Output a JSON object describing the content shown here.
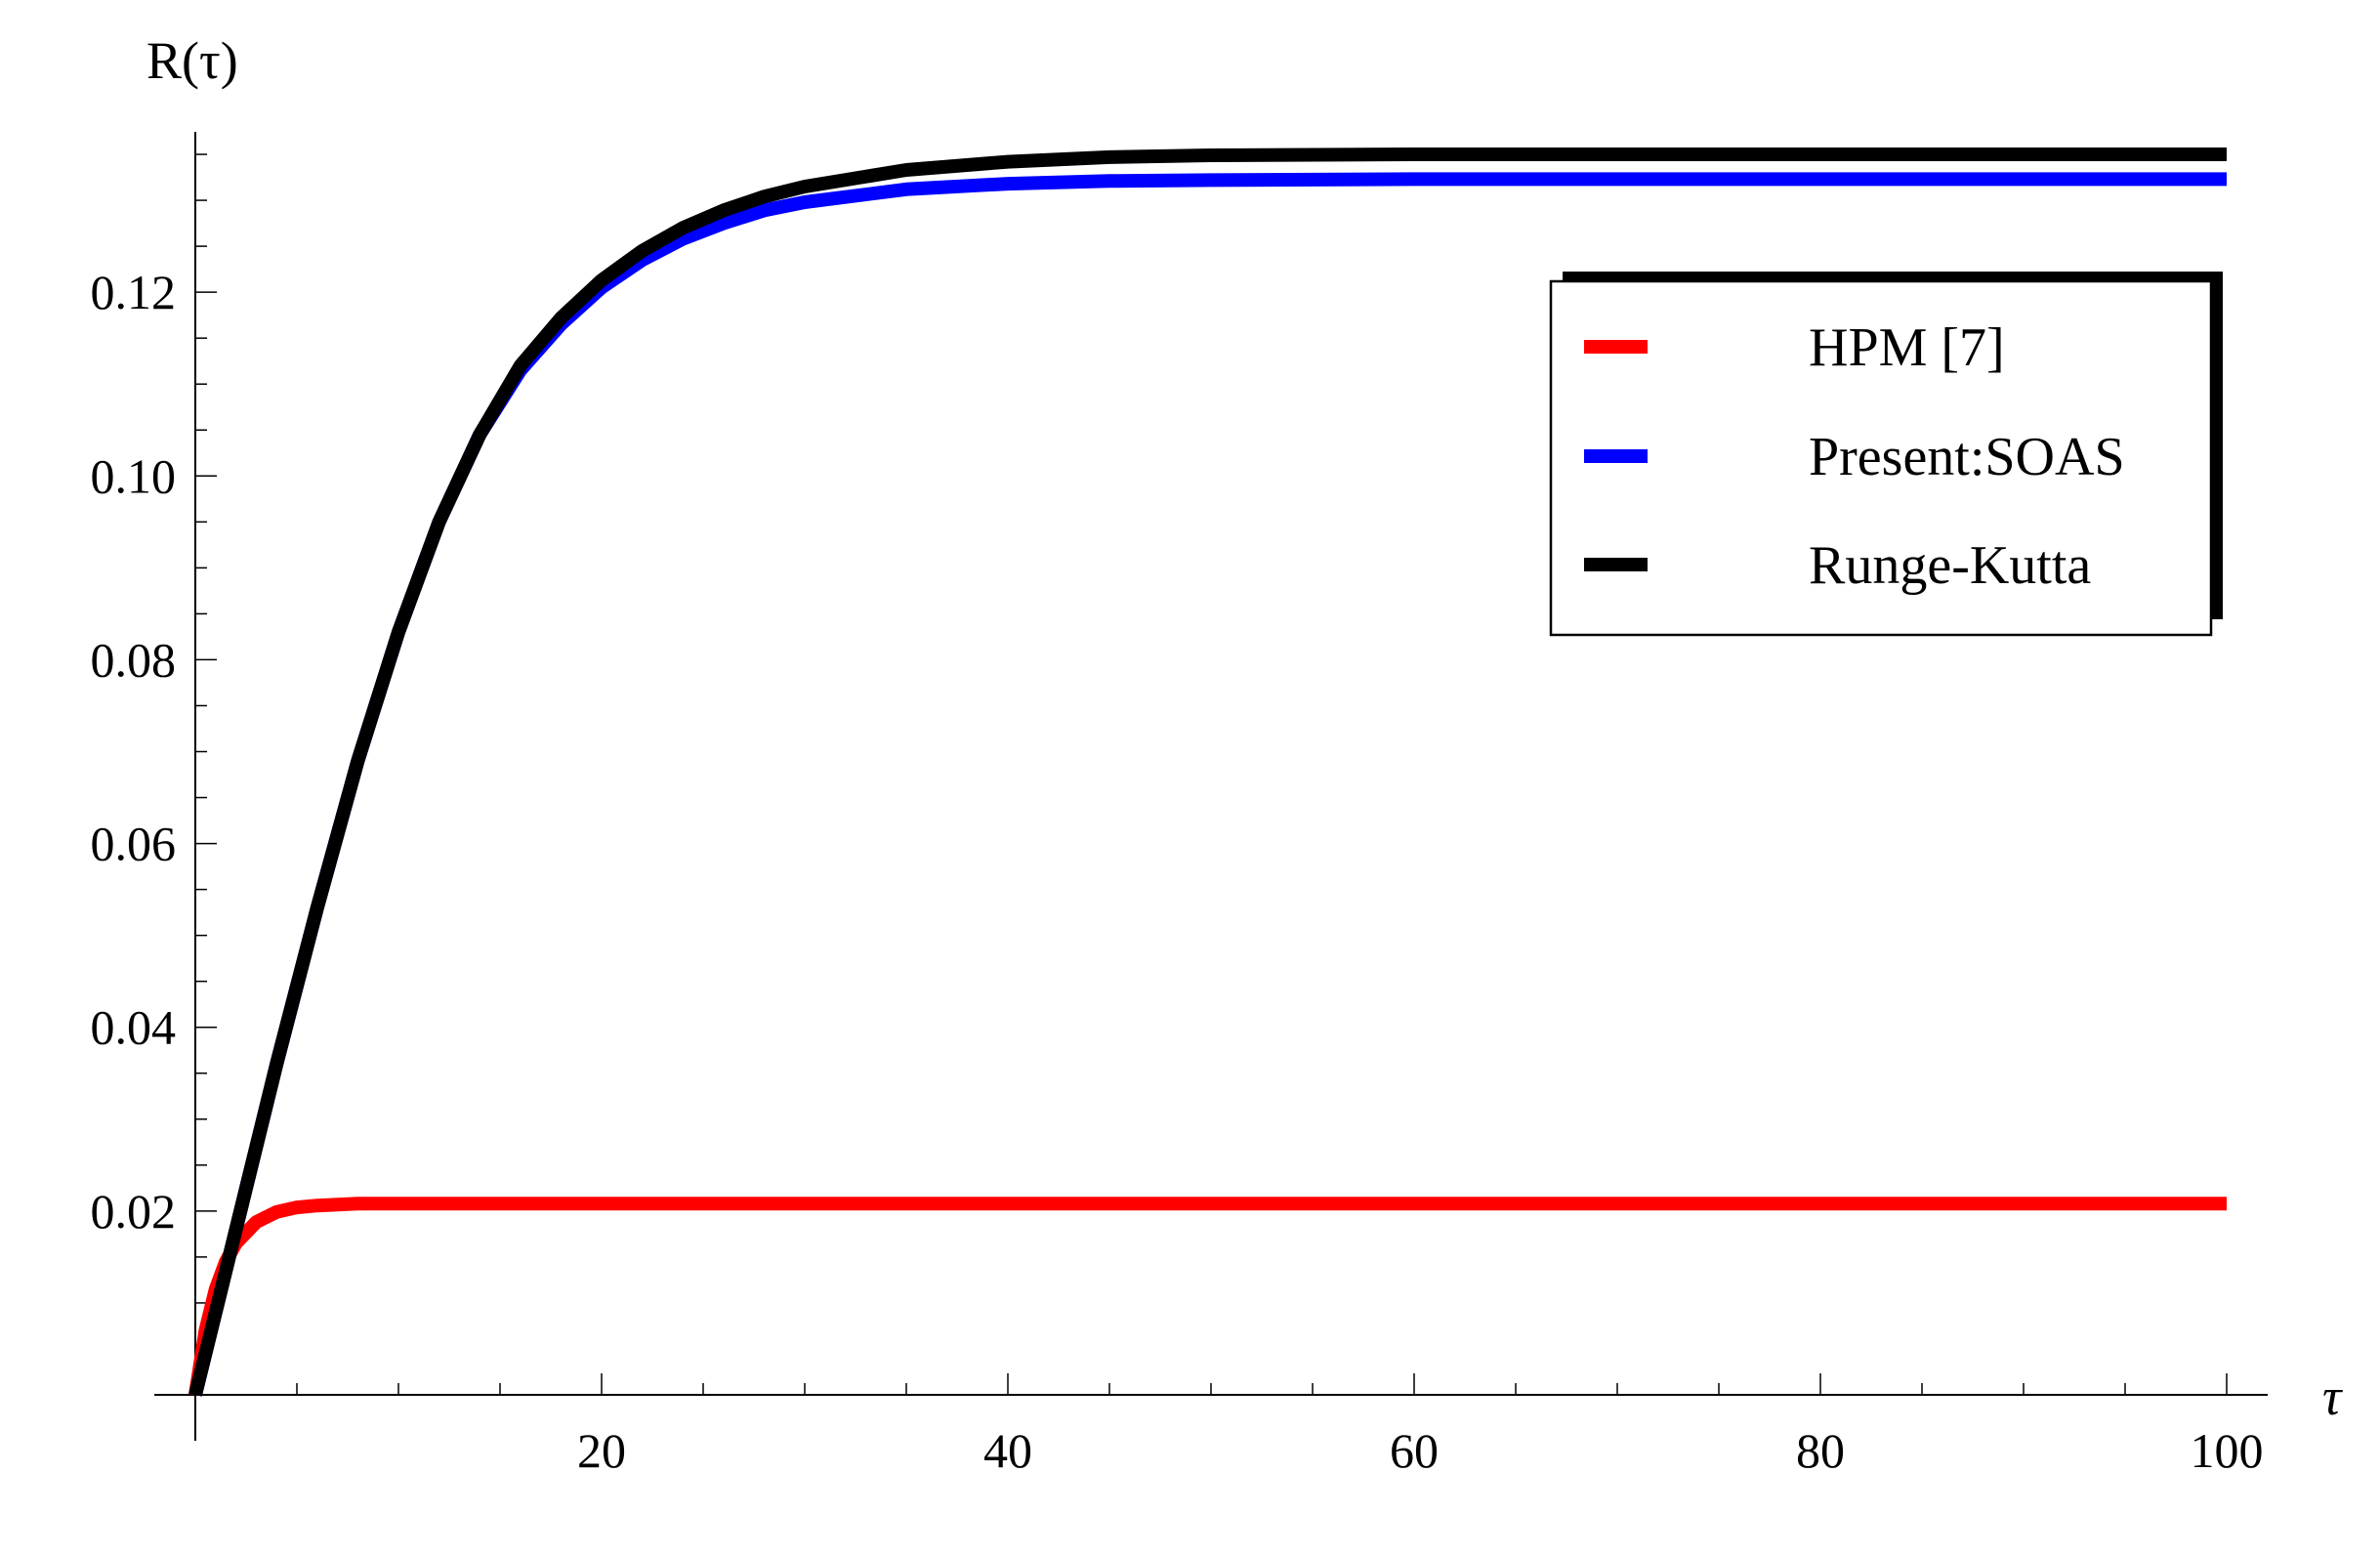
{
  "chart_data": {
    "type": "line",
    "xlabel": "τ",
    "ylabel": "R(τ)",
    "xlim": [
      0,
      100
    ],
    "ylim": [
      0,
      0.14
    ],
    "x_ticks": [
      20,
      40,
      60,
      80,
      100
    ],
    "x_tick_labels": [
      "20",
      "40",
      "60",
      "80",
      "100"
    ],
    "y_ticks": [
      0.02,
      0.04,
      0.06,
      0.08,
      0.1,
      0.12
    ],
    "y_tick_labels": [
      "0.02",
      "0.04",
      "0.06",
      "0.08",
      "0.10",
      "0.12"
    ],
    "grid": false,
    "legend_position": "top-right",
    "series": [
      {
        "name": "HPM [7]",
        "color": "#ff0000",
        "x": [
          0,
          0.5,
          1,
          1.5,
          2,
          3,
          4,
          5,
          6,
          8,
          10,
          15,
          20,
          30,
          40,
          50,
          60,
          70,
          80,
          90,
          100
        ],
        "y": [
          0,
          0.007,
          0.0115,
          0.0145,
          0.0165,
          0.0188,
          0.0199,
          0.0204,
          0.0206,
          0.0208,
          0.0208,
          0.0208,
          0.0208,
          0.0208,
          0.0208,
          0.0208,
          0.0208,
          0.0208,
          0.0208,
          0.0208,
          0.0208
        ]
      },
      {
        "name": "Present:SOAS",
        "color": "#0000ff",
        "x": [
          0,
          2,
          4,
          6,
          8,
          10,
          12,
          14,
          16,
          18,
          20,
          22,
          24,
          26,
          28,
          30,
          35,
          40,
          45,
          50,
          60,
          70,
          80,
          90,
          100
        ],
        "y": [
          0,
          0.018,
          0.036,
          0.053,
          0.069,
          0.083,
          0.095,
          0.1045,
          0.1115,
          0.1165,
          0.1205,
          0.1235,
          0.1258,
          0.1275,
          0.1289,
          0.1298,
          0.1312,
          0.1318,
          0.1321,
          0.1322,
          0.1323,
          0.1323,
          0.1323,
          0.1323,
          0.1323
        ]
      },
      {
        "name": "Runge-Kutta",
        "color": "#000000",
        "x": [
          0,
          2,
          4,
          6,
          8,
          10,
          12,
          14,
          16,
          18,
          20,
          22,
          24,
          26,
          28,
          30,
          35,
          40,
          45,
          50,
          60,
          70,
          80,
          90,
          100
        ],
        "y": [
          0,
          0.018,
          0.036,
          0.053,
          0.069,
          0.083,
          0.095,
          0.1045,
          0.112,
          0.1172,
          0.1213,
          0.1245,
          0.127,
          0.1289,
          0.1304,
          0.1315,
          0.1333,
          0.1342,
          0.1347,
          0.1349,
          0.135,
          0.135,
          0.135,
          0.135,
          0.135
        ]
      }
    ]
  }
}
